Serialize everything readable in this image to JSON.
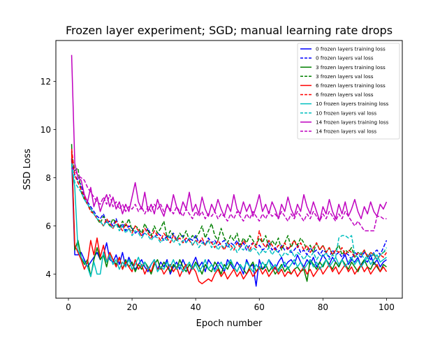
{
  "chart_data": {
    "type": "line",
    "title": "Frozen layer experiment; SGD; manual learning rate drops",
    "xlabel": "Epoch number",
    "ylabel": "SSD Loss",
    "xlim": [
      -3.95,
      104.95
    ],
    "ylim": [
      3.0,
      13.7
    ],
    "xticks": [
      0,
      20,
      40,
      60,
      80,
      100
    ],
    "yticks": [
      4,
      6,
      8,
      10,
      12
    ],
    "grid": false,
    "legend_position": "top-right",
    "series": [
      {
        "name": "0 frozen layers training loss",
        "color": "#0000ff",
        "dash": "solid",
        "values": [
          8.8,
          4.8,
          4.8,
          4.9,
          4.6,
          4.3,
          4.5,
          4.7,
          4.9,
          4.6,
          4.8,
          5.3,
          4.6,
          4.5,
          4.8,
          4.4,
          4.9,
          4.3,
          4.7,
          4.4,
          4.2,
          4.4,
          4.6,
          4.3,
          4.1,
          4.4,
          4.6,
          4.2,
          4.5,
          4.3,
          4.6,
          4.0,
          4.3,
          4.5,
          4.2,
          4.6,
          4.3,
          4.0,
          4.4,
          4.7,
          4.3,
          4.5,
          4.1,
          4.6,
          4.4,
          4.2,
          4.5,
          4.3,
          4.1,
          4.6,
          4.4,
          4.2,
          4.5,
          4.3,
          4.0,
          4.6,
          4.3,
          4.4,
          3.5,
          4.6,
          4.2,
          4.3,
          4.6,
          4.4,
          4.2,
          4.5,
          4.7,
          4.3,
          4.5,
          4.6,
          4.4,
          4.8,
          4.5,
          4.3,
          4.6,
          4.4,
          4.7,
          4.3,
          4.5,
          4.8,
          4.6,
          4.4,
          4.7,
          4.5,
          4.3,
          4.6,
          4.8,
          4.4,
          4.6,
          4.5,
          4.7,
          4.3,
          4.6,
          4.5,
          4.8,
          4.4,
          4.6,
          4.3,
          4.5,
          4.6
        ]
      },
      {
        "name": "0 frozen layers val loss",
        "color": "#0000ff",
        "dash": "dashed",
        "values": [
          8.7,
          8.1,
          7.9,
          7.7,
          7.2,
          7.0,
          6.8,
          6.6,
          6.4,
          6.3,
          6.5,
          6.1,
          6.2,
          6.0,
          6.3,
          5.9,
          6.1,
          5.8,
          6.0,
          5.9,
          5.7,
          5.8,
          5.6,
          5.7,
          5.9,
          5.6,
          5.5,
          5.7,
          5.6,
          5.4,
          5.6,
          5.5,
          5.7,
          5.4,
          5.5,
          5.6,
          5.3,
          5.5,
          5.4,
          5.6,
          5.3,
          5.4,
          5.2,
          5.5,
          5.3,
          5.4,
          5.2,
          5.3,
          5.4,
          5.1,
          5.3,
          5.2,
          5.4,
          5.1,
          5.3,
          5.0,
          5.2,
          5.3,
          5.1,
          5.2,
          5.0,
          5.1,
          5.3,
          5.0,
          5.1,
          4.9,
          5.2,
          5.0,
          5.1,
          4.9,
          5.0,
          5.2,
          4.9,
          5.0,
          4.8,
          5.1,
          4.9,
          5.0,
          4.8,
          5.0,
          4.9,
          4.7,
          5.0,
          4.8,
          4.9,
          4.7,
          4.9,
          4.8,
          4.6,
          4.9,
          4.8,
          4.7,
          4.9,
          4.8,
          4.6,
          4.9,
          5.0,
          4.8,
          5.1,
          5.4
        ]
      },
      {
        "name": "3 frozen layers training loss",
        "color": "#008000",
        "dash": "solid",
        "values": [
          9.4,
          5.0,
          5.4,
          4.7,
          4.4,
          4.6,
          3.9,
          4.6,
          5.1,
          4.6,
          4.8,
          4.3,
          4.9,
          4.6,
          4.4,
          4.7,
          4.2,
          4.6,
          4.3,
          4.5,
          4.1,
          4.4,
          4.2,
          4.5,
          4.3,
          4.0,
          4.4,
          4.6,
          4.2,
          4.5,
          4.3,
          4.1,
          4.4,
          4.2,
          4.6,
          4.3,
          4.1,
          4.4,
          4.2,
          4.5,
          4.3,
          4.0,
          4.4,
          4.2,
          4.1,
          4.5,
          4.3,
          4.0,
          4.4,
          4.2,
          4.5,
          4.3,
          4.1,
          4.4,
          4.2,
          4.0,
          4.3,
          4.5,
          4.1,
          4.3,
          4.2,
          4.4,
          4.1,
          4.3,
          4.0,
          4.2,
          4.4,
          4.1,
          4.3,
          4.0,
          4.2,
          4.3,
          4.1,
          4.2,
          3.7,
          4.6,
          4.4,
          4.2,
          4.5,
          4.3,
          4.6,
          4.4,
          4.2,
          4.5,
          4.3,
          4.6,
          4.4,
          4.2,
          4.5,
          4.3,
          4.1,
          4.4,
          4.6,
          4.3,
          4.2,
          4.5,
          4.3,
          4.1,
          4.4,
          4.3
        ]
      },
      {
        "name": "3 frozen layers val loss",
        "color": "#008000",
        "dash": "dashed",
        "values": [
          9.0,
          8.3,
          8.4,
          7.4,
          7.1,
          6.9,
          6.7,
          6.5,
          6.3,
          6.1,
          6.4,
          6.2,
          6.0,
          6.3,
          6.1,
          5.9,
          6.2,
          6.0,
          6.3,
          5.8,
          6.0,
          5.9,
          5.7,
          6.1,
          5.8,
          5.6,
          6.0,
          5.7,
          5.9,
          6.2,
          5.5,
          5.8,
          5.6,
          5.4,
          5.7,
          5.5,
          5.8,
          5.4,
          5.6,
          5.5,
          5.7,
          6.0,
          5.5,
          5.8,
          6.1,
          5.6,
          5.4,
          5.9,
          5.5,
          5.3,
          5.6,
          5.4,
          5.7,
          5.2,
          5.5,
          5.3,
          5.6,
          5.4,
          5.2,
          5.5,
          5.3,
          5.6,
          5.1,
          5.4,
          5.2,
          5.5,
          5.0,
          5.3,
          5.6,
          5.1,
          5.4,
          5.2,
          5.5,
          5.3,
          5.0,
          5.2,
          4.9,
          5.3,
          5.0,
          5.2,
          4.9,
          5.1,
          4.8,
          5.0,
          5.2,
          4.8,
          5.0,
          4.9,
          5.1,
          4.7,
          4.9,
          4.8,
          5.0,
          4.7,
          4.9,
          4.8,
          4.6,
          4.8,
          4.9,
          5.0
        ]
      },
      {
        "name": "6 frozen layers training loss",
        "color": "#ff0000",
        "dash": "solid",
        "values": [
          9.1,
          5.2,
          4.9,
          4.6,
          4.2,
          4.5,
          5.4,
          4.8,
          5.5,
          4.7,
          5.2,
          4.5,
          4.9,
          4.6,
          4.3,
          4.7,
          4.2,
          4.5,
          4.3,
          4.1,
          4.6,
          4.2,
          4.4,
          4.0,
          4.3,
          4.1,
          4.5,
          4.2,
          4.3,
          4.0,
          4.2,
          4.4,
          4.1,
          4.3,
          3.9,
          4.2,
          4.4,
          4.0,
          4.3,
          4.1,
          3.7,
          3.6,
          3.7,
          3.8,
          3.7,
          4.0,
          4.2,
          3.9,
          4.1,
          3.8,
          4.0,
          4.2,
          3.9,
          4.1,
          3.8,
          4.0,
          4.2,
          3.9,
          4.1,
          4.3,
          4.0,
          4.2,
          3.9,
          4.1,
          4.3,
          4.0,
          4.2,
          3.9,
          4.1,
          4.0,
          4.2,
          3.9,
          4.1,
          4.3,
          4.0,
          4.2,
          3.9,
          4.1,
          4.3,
          4.0,
          4.2,
          4.4,
          4.1,
          4.3,
          4.0,
          4.2,
          4.4,
          4.1,
          4.3,
          4.0,
          4.2,
          4.4,
          4.1,
          4.3,
          4.0,
          4.2,
          4.4,
          4.1,
          4.3,
          4.1
        ]
      },
      {
        "name": "6 frozen layers val loss",
        "color": "#ff0000",
        "dash": "dashed",
        "values": [
          9.2,
          8.1,
          7.8,
          7.5,
          7.2,
          6.9,
          6.6,
          6.5,
          6.3,
          6.2,
          6.0,
          6.3,
          6.1,
          5.9,
          6.2,
          6.0,
          5.8,
          6.1,
          5.9,
          5.7,
          6.0,
          5.8,
          5.6,
          5.9,
          5.7,
          5.5,
          5.8,
          5.6,
          5.4,
          5.7,
          5.5,
          5.3,
          5.6,
          5.4,
          5.5,
          5.3,
          5.5,
          5.4,
          5.2,
          5.4,
          5.3,
          5.5,
          5.2,
          5.4,
          5.3,
          5.1,
          5.4,
          5.2,
          5.0,
          5.3,
          5.2,
          5.0,
          5.3,
          5.1,
          5.4,
          5.2,
          5.0,
          5.3,
          5.1,
          5.8,
          5.3,
          5.1,
          5.4,
          5.2,
          5.0,
          5.2,
          5.1,
          5.3,
          5.0,
          5.2,
          5.4,
          5.1,
          5.3,
          5.0,
          5.2,
          4.9,
          5.1,
          5.3,
          5.0,
          5.2,
          4.9,
          5.1,
          4.8,
          5.0,
          4.9,
          5.1,
          4.8,
          5.0,
          4.9,
          4.7,
          4.9,
          4.8,
          5.0,
          4.7,
          4.9,
          4.8,
          4.6,
          4.8,
          4.7,
          4.9
        ]
      },
      {
        "name": "10 frozen layers training loss",
        "color": "#00bfbf",
        "dash": "solid",
        "values": [
          8.5,
          7.6,
          5.0,
          4.7,
          4.5,
          4.3,
          3.9,
          4.5,
          4.0,
          4.0,
          4.9,
          4.5,
          4.8,
          4.4,
          4.6,
          4.2,
          4.5,
          4.3,
          4.6,
          4.2,
          4.4,
          4.7,
          4.3,
          4.5,
          4.2,
          4.4,
          4.6,
          4.1,
          4.3,
          4.2,
          4.5,
          4.3,
          4.6,
          4.2,
          4.4,
          4.1,
          4.3,
          4.5,
          4.2,
          4.4,
          4.1,
          4.3,
          4.6,
          4.2,
          4.4,
          4.1,
          4.3,
          4.5,
          4.2,
          4.4,
          4.6,
          4.3,
          4.1,
          4.4,
          4.2,
          4.5,
          4.3,
          4.1,
          4.4,
          4.2,
          4.5,
          4.3,
          4.6,
          4.2,
          4.4,
          4.1,
          4.3,
          4.5,
          4.2,
          4.4,
          4.6,
          4.3,
          4.5,
          4.2,
          4.4,
          4.6,
          4.3,
          4.5,
          4.2,
          4.4,
          4.6,
          4.3,
          4.5,
          4.7,
          4.4,
          4.6,
          4.3,
          4.5,
          4.7,
          4.4,
          4.6,
          4.3,
          4.5,
          4.7,
          4.4,
          4.6,
          4.8,
          4.5,
          4.6,
          4.7
        ]
      },
      {
        "name": "10 frozen layers val loss",
        "color": "#00bfbf",
        "dash": "dashed",
        "values": [
          8.6,
          7.8,
          7.6,
          7.4,
          7.1,
          6.9,
          6.7,
          6.5,
          6.3,
          6.2,
          6.0,
          6.2,
          6.0,
          5.9,
          6.1,
          5.8,
          6.0,
          5.7,
          5.9,
          5.6,
          5.8,
          5.7,
          5.5,
          5.7,
          5.6,
          5.4,
          5.6,
          5.5,
          5.3,
          5.5,
          5.4,
          5.6,
          5.3,
          5.5,
          5.2,
          5.4,
          5.3,
          5.5,
          5.2,
          5.4,
          5.1,
          5.3,
          5.2,
          5.4,
          5.1,
          5.3,
          5.0,
          5.2,
          5.1,
          5.3,
          5.0,
          5.2,
          4.9,
          5.1,
          5.0,
          5.2,
          4.9,
          5.1,
          5.0,
          4.8,
          5.0,
          4.9,
          5.1,
          4.8,
          5.0,
          4.9,
          4.7,
          4.9,
          4.8,
          5.0,
          4.7,
          4.9,
          4.8,
          4.6,
          4.8,
          4.7,
          4.9,
          4.6,
          4.8,
          4.7,
          4.9,
          4.6,
          4.8,
          4.7,
          5.5,
          5.6,
          5.6,
          5.5,
          5.6,
          4.8,
          4.7,
          4.9,
          4.6,
          4.8,
          4.7,
          4.9,
          4.6,
          4.8,
          4.9,
          5.1
        ]
      },
      {
        "name": "14 frozen layers training loss",
        "color": "#bf00bf",
        "dash": "solid",
        "values": [
          13.1,
          8.6,
          8.0,
          7.9,
          7.3,
          7.0,
          7.6,
          6.8,
          7.2,
          6.6,
          7.0,
          7.3,
          6.8,
          7.2,
          6.7,
          7.0,
          6.5,
          6.9,
          6.6,
          7.2,
          7.8,
          7.0,
          6.7,
          7.4,
          6.6,
          6.9,
          6.5,
          7.1,
          6.7,
          6.4,
          6.9,
          6.6,
          7.3,
          6.8,
          6.5,
          7.0,
          6.7,
          7.4,
          6.6,
          6.9,
          6.5,
          7.2,
          6.7,
          6.4,
          6.9,
          6.6,
          7.1,
          6.7,
          6.4,
          6.9,
          6.6,
          7.3,
          6.7,
          6.5,
          7.0,
          6.6,
          6.9,
          6.4,
          6.8,
          7.3,
          6.6,
          6.9,
          6.5,
          7.0,
          6.7,
          6.3,
          6.9,
          6.6,
          7.2,
          6.7,
          6.4,
          6.9,
          6.6,
          7.3,
          6.8,
          6.5,
          7.0,
          6.6,
          6.2,
          6.8,
          6.5,
          7.1,
          6.6,
          6.3,
          6.9,
          6.5,
          7.0,
          6.4,
          6.7,
          7.1,
          6.6,
          6.3,
          6.8,
          6.5,
          7.0,
          6.6,
          6.4,
          6.9,
          6.7,
          7.0
        ]
      },
      {
        "name": "14 frozen layers val loss",
        "color": "#bf00bf",
        "dash": "dashed",
        "values": [
          8.4,
          8.3,
          8.1,
          8.0,
          7.9,
          7.6,
          7.4,
          7.2,
          7.0,
          6.9,
          7.2,
          6.9,
          7.3,
          6.8,
          7.0,
          6.7,
          6.9,
          6.6,
          6.8,
          6.7,
          6.9,
          6.6,
          6.8,
          6.5,
          6.8,
          6.6,
          6.9,
          6.7,
          6.9,
          6.6,
          6.8,
          6.7,
          6.5,
          6.8,
          6.6,
          6.4,
          6.7,
          6.5,
          6.3,
          6.6,
          6.4,
          6.6,
          6.3,
          6.5,
          6.4,
          6.6,
          6.3,
          6.5,
          6.4,
          6.2,
          6.5,
          6.3,
          6.6,
          6.4,
          6.2,
          6.5,
          6.3,
          6.6,
          6.4,
          6.2,
          6.5,
          6.3,
          6.6,
          6.4,
          6.5,
          6.3,
          6.6,
          6.4,
          6.2,
          6.5,
          6.3,
          6.6,
          6.4,
          6.2,
          6.5,
          6.3,
          6.6,
          6.4,
          6.2,
          6.5,
          6.3,
          6.6,
          6.4,
          6.2,
          6.5,
          6.3,
          6.6,
          6.4,
          6.2,
          6.0,
          6.2,
          6.0,
          5.8,
          5.8,
          5.8,
          5.8,
          6.4,
          6.4,
          6.3,
          6.3
        ]
      }
    ]
  }
}
